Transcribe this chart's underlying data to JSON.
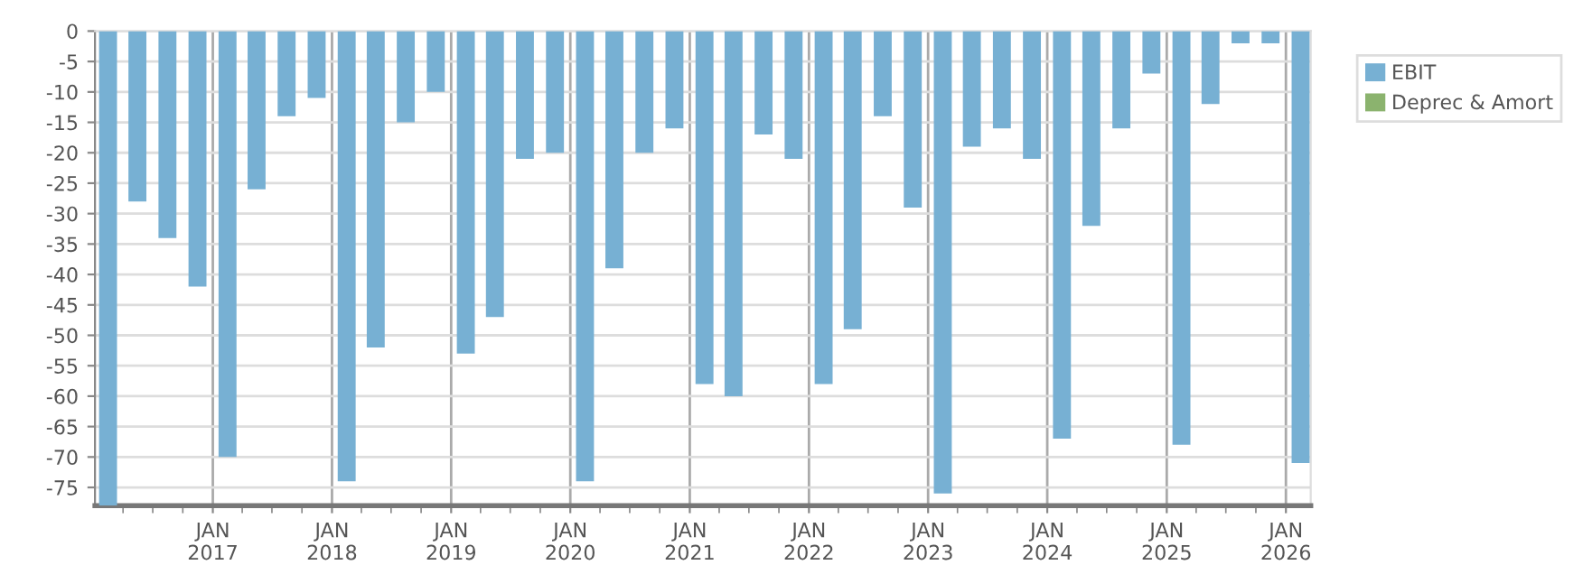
{
  "chart_data": {
    "type": "bar",
    "x": [
      "2016-02-15",
      "2016-05-15",
      "2016-08-15",
      "2016-11-15",
      "2017-02-15",
      "2017-05-15",
      "2017-08-15",
      "2017-11-15",
      "2018-02-15",
      "2018-05-15",
      "2018-08-15",
      "2018-11-15",
      "2019-02-15",
      "2019-05-15",
      "2019-08-15",
      "2019-11-15",
      "2020-02-15",
      "2020-05-15",
      "2020-08-15",
      "2020-11-15",
      "2021-02-15",
      "2021-05-15",
      "2021-08-15",
      "2021-11-15",
      "2022-02-15",
      "2022-05-15",
      "2022-08-15",
      "2022-11-15",
      "2023-02-15",
      "2023-05-15",
      "2023-08-15",
      "2023-11-15",
      "2024-02-15",
      "2024-05-15",
      "2024-08-15",
      "2024-11-15",
      "2025-02-15",
      "2025-05-15",
      "2025-08-15",
      "2025-11-15",
      "2026-02-15"
    ],
    "series": [
      {
        "name": "EBIT",
        "color": "#77b0d3",
        "values": [
          -78,
          -28,
          -34,
          -42,
          -70,
          -26,
          -14,
          -11,
          -74,
          -52,
          -15,
          -10,
          -53,
          -47,
          -21,
          -20,
          -74,
          -39,
          -20,
          -16,
          -58,
          -60,
          -17,
          -21,
          -58,
          -49,
          -14,
          -29,
          -76,
          -19,
          -16,
          -21,
          -67,
          -32,
          -16,
          -7,
          -68,
          -12,
          -2,
          -2,
          -71
        ]
      },
      {
        "name": "Deprec & Amort",
        "color": "#8bb36e",
        "values": [
          null,
          null,
          null,
          null,
          null,
          null,
          null,
          null,
          null,
          null,
          null,
          null,
          null,
          null,
          null,
          null,
          null,
          null,
          null,
          null,
          null,
          null,
          null,
          null,
          null,
          null,
          null,
          null,
          null,
          null,
          null,
          null,
          null,
          null,
          null,
          null,
          null,
          null,
          null,
          null,
          null
        ]
      }
    ],
    "xlim": [
      "2016-01-06",
      "2026-03-18"
    ],
    "xticks": [
      {
        "value": "2017-01-01",
        "label": "JAN\n2017"
      },
      {
        "value": "2018-01-01",
        "label": "JAN\n2018"
      },
      {
        "value": "2019-01-01",
        "label": "JAN\n2019"
      },
      {
        "value": "2020-01-01",
        "label": "JAN\n2020"
      },
      {
        "value": "2021-01-01",
        "label": "JAN\n2021"
      },
      {
        "value": "2022-01-01",
        "label": "JAN\n2022"
      },
      {
        "value": "2023-01-01",
        "label": "JAN\n2023"
      },
      {
        "value": "2024-01-01",
        "label": "JAN\n2024"
      },
      {
        "value": "2025-01-01",
        "label": "JAN\n2025"
      },
      {
        "value": "2026-01-01",
        "label": "JAN\n2026"
      }
    ],
    "ylim": [
      -78,
      0
    ],
    "yticks": [
      0,
      -5,
      -10,
      -15,
      -20,
      -25,
      -30,
      -35,
      -40,
      -45,
      -50,
      -55,
      -60,
      -65,
      -70,
      -75
    ],
    "grid": true,
    "legend": "top right"
  }
}
